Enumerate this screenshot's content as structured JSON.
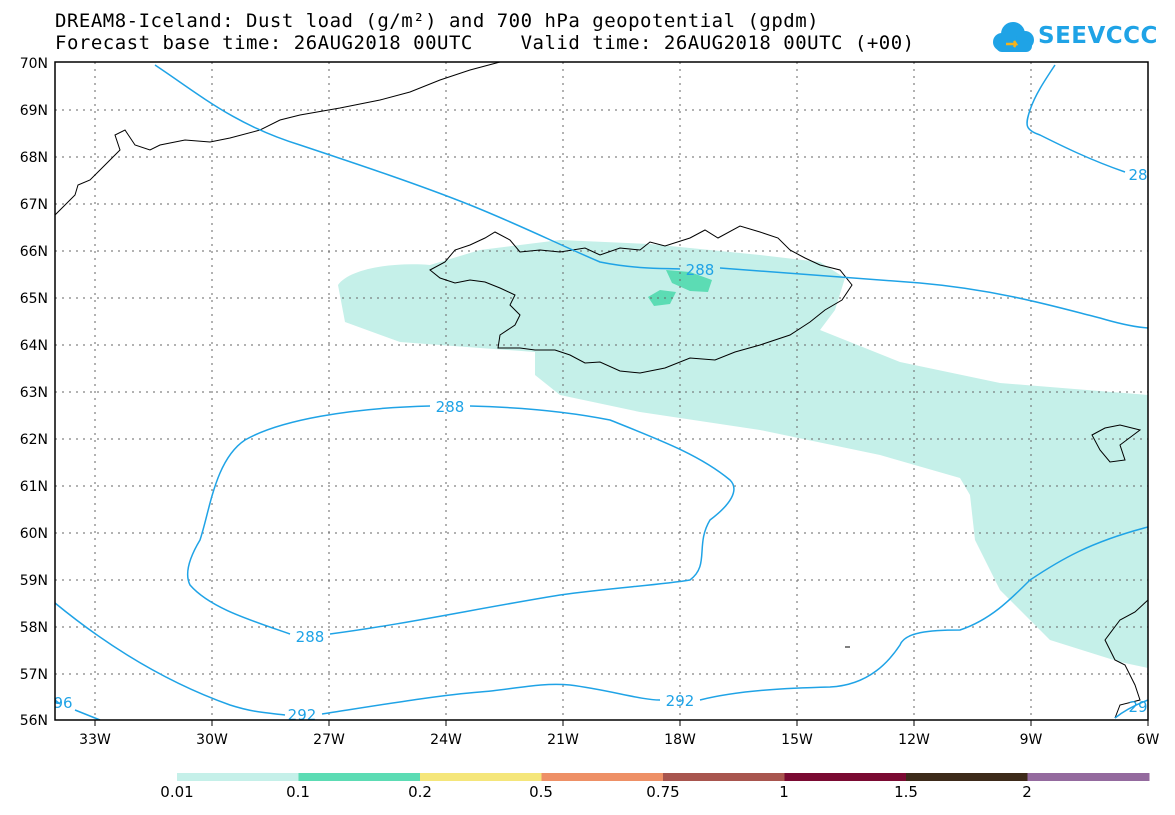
{
  "title_line1": "DREAM8-Iceland: Dust load (g/m²) and 700 hPa geopotential (gpdm)",
  "title_line2": "Forecast base time: 26AUG2018 00UTC    Valid time: 26AUG2018 00UTC (+00)",
  "logo_text": "SEEVCCC",
  "lat_labels": [
    "70N",
    "69N",
    "68N",
    "67N",
    "66N",
    "65N",
    "64N",
    "63N",
    "62N",
    "61N",
    "60N",
    "59N",
    "58N",
    "57N",
    "56N"
  ],
  "lon_labels": [
    "33W",
    "30W",
    "27W",
    "24W",
    "21W",
    "18W",
    "15W",
    "12W",
    "9W",
    "6W"
  ],
  "contour_labels": {
    "c288_iceland": "288",
    "c288_ring_top": "288",
    "c288_ring_bottom": "288",
    "c292_left": "292",
    "c292_mid": "292",
    "c296_left": "96",
    "c28_right": "28",
    "c29_br": "29"
  },
  "colorbar": {
    "labels": [
      "0.01",
      "0.1",
      "0.2",
      "0.5",
      "0.75",
      "1",
      "1.5",
      "2"
    ],
    "colors": [
      "#c5f0e9",
      "#5cdcb4",
      "#f5e67a",
      "#ee9066",
      "#a8554e",
      "#7a0a32",
      "#3d2a1a",
      "#946a9e"
    ]
  },
  "colors": {
    "contour": "#1fa3e6",
    "dust_low": "#c5f0e9",
    "dust_mid": "#5cdcb4",
    "coast": "#000000",
    "grid": "#555555"
  }
}
